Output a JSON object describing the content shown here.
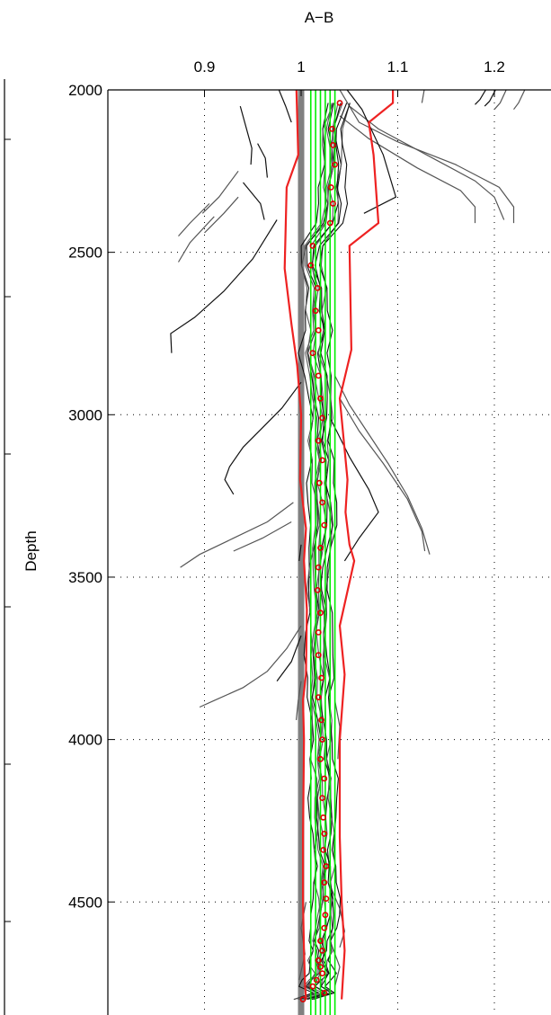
{
  "chart_data": {
    "type": "line",
    "title": "A−B",
    "xlabel": "",
    "ylabel": "Depth",
    "x_axis_position": "top",
    "y_axis_reversed": true,
    "xlim": [
      0.8,
      1.27
    ],
    "ylim": [
      1980,
      4800
    ],
    "x_ticks": [
      0.9,
      1.0,
      1.1,
      1.2
    ],
    "x_tick_labels": [
      "0.9",
      "1",
      "1.1",
      "1.2"
    ],
    "y_ticks": [
      2000,
      2500,
      3000,
      3500,
      4000,
      4500
    ],
    "y_tick_labels": [
      "2000",
      "2500",
      "3000",
      "3500",
      "4000",
      "4500"
    ],
    "grid": true,
    "colors": {
      "reference": "#808080",
      "envelope": "#ee2222",
      "markers": "#dd0000",
      "green": "#00ee00",
      "profile_dark": "#111111",
      "profile_gray": "#555555"
    },
    "reference_line": {
      "x": 1.0
    },
    "envelope_left": {
      "x": [
        0.995,
        0.997,
        0.985,
        0.983,
        0.99,
        0.996,
        1.0,
        0.999,
        1.005,
        1.003,
        1.006,
        1.005,
        1.002,
        1.003,
        1.002,
        1.002,
        1.003,
        1.004,
        1.005
      ],
      "y": [
        1980,
        2200,
        2300,
        2550,
        2720,
        2850,
        3000,
        3200,
        3350,
        3450,
        3600,
        3800,
        3880,
        4000,
        4300,
        4500,
        4650,
        4750,
        4800
      ]
    },
    "envelope_right": {
      "x": [
        1.095,
        1.095,
        1.07,
        1.075,
        1.08,
        1.05,
        1.052,
        1.04,
        1.048,
        1.046,
        1.05,
        1.055,
        1.04,
        1.045,
        1.04,
        1.04,
        1.042,
        1.045,
        1.042
      ],
      "y": [
        1980,
        2040,
        2100,
        2200,
        2410,
        2480,
        2800,
        2950,
        3200,
        3300,
        3400,
        3450,
        3650,
        3800,
        4000,
        4300,
        4500,
        4650,
        4800
      ]
    },
    "green_lines": [
      1.01,
      1.015,
      1.02,
      1.025,
      1.03,
      1.035
    ],
    "markers": {
      "depth": [
        2040,
        2120,
        2170,
        2230,
        2300,
        2350,
        2410,
        2480,
        2540,
        2610,
        2680,
        2740,
        2810,
        2880,
        2950,
        3010,
        3080,
        3140,
        3210,
        3270,
        3340,
        3410,
        3470,
        3540,
        3610,
        3670,
        3740,
        3810,
        3870,
        3940,
        4000,
        4060,
        4120,
        4180,
        4240,
        4290,
        4340,
        4390,
        4440,
        4490,
        4540,
        4580,
        4620,
        4650,
        4680,
        4700,
        4720,
        4740,
        4760,
        4780,
        4800
      ],
      "value": [
        1.04,
        1.032,
        1.033,
        1.035,
        1.031,
        1.033,
        1.03,
        1.012,
        1.01,
        1.017,
        1.015,
        1.018,
        1.012,
        1.018,
        1.02,
        1.022,
        1.018,
        1.022,
        1.019,
        1.022,
        1.024,
        1.02,
        1.018,
        1.017,
        1.02,
        1.018,
        1.018,
        1.021,
        1.018,
        1.021,
        1.022,
        1.02,
        1.024,
        1.022,
        1.023,
        1.024,
        1.023,
        1.026,
        1.024,
        1.026,
        1.025,
        1.024,
        1.02,
        1.022,
        1.018,
        1.02,
        1.022,
        1.016,
        1.012,
        1.024,
        1.002
      ]
    },
    "profiles": [
      {
        "color": "dark",
        "points": [
          [
            0.937,
            2050
          ],
          [
            0.949,
            2180
          ],
          [
            0.948,
            2230
          ]
        ]
      },
      {
        "color": "dark",
        "points": [
          [
            0.975,
            1985
          ],
          [
            0.984,
            2050
          ],
          [
            0.99,
            2100
          ]
        ]
      },
      {
        "color": "dark",
        "points": [
          [
            0.955,
            2165
          ],
          [
            0.963,
            2210
          ],
          [
            0.965,
            2270
          ]
        ]
      },
      {
        "color": "dark",
        "points": [
          [
            0.94,
            2285
          ],
          [
            0.958,
            2350
          ],
          [
            0.962,
            2400
          ]
        ]
      },
      {
        "color": "gray",
        "points": [
          [
            0.935,
            2250
          ],
          [
            0.915,
            2330
          ],
          [
            0.898,
            2380
          ]
        ]
      },
      {
        "color": "gray",
        "points": [
          [
            0.935,
            2330
          ],
          [
            0.92,
            2380
          ],
          [
            0.9,
            2440
          ]
        ]
      },
      {
        "color": "gray",
        "points": [
          [
            0.905,
            2350
          ],
          [
            0.885,
            2410
          ],
          [
            0.873,
            2450
          ]
        ]
      },
      {
        "color": "gray",
        "points": [
          [
            0.91,
            2390
          ],
          [
            0.885,
            2470
          ],
          [
            0.873,
            2530
          ]
        ]
      },
      {
        "color": "dark",
        "points": [
          [
            0.975,
            2400
          ],
          [
            0.95,
            2520
          ],
          [
            0.92,
            2620
          ],
          [
            0.89,
            2700
          ],
          [
            0.865,
            2750
          ],
          [
            0.866,
            2810
          ]
        ]
      },
      {
        "color": "gray",
        "points": [
          [
            1.04,
            2000
          ],
          [
            1.06,
            2100
          ],
          [
            1.1,
            2160
          ],
          [
            1.16,
            2230
          ],
          [
            1.205,
            2300
          ],
          [
            1.22,
            2360
          ],
          [
            1.22,
            2410
          ]
        ]
      },
      {
        "color": "gray",
        "points": [
          [
            1.05,
            2050
          ],
          [
            1.08,
            2120
          ],
          [
            1.13,
            2200
          ],
          [
            1.18,
            2280
          ],
          [
            1.2,
            2330
          ],
          [
            1.21,
            2400
          ]
        ]
      },
      {
        "color": "gray",
        "points": [
          [
            1.04,
            2080
          ],
          [
            1.07,
            2150
          ],
          [
            1.12,
            2240
          ],
          [
            1.165,
            2310
          ],
          [
            1.18,
            2360
          ],
          [
            1.18,
            2410
          ]
        ]
      },
      {
        "color": "dark",
        "points": [
          [
            1.045,
            1990
          ],
          [
            1.063,
            2060
          ],
          [
            1.085,
            2200
          ],
          [
            1.098,
            2330
          ],
          [
            1.065,
            2380
          ]
        ]
      },
      {
        "color": "gray",
        "points": [
          [
            1.128,
            1990
          ],
          [
            1.125,
            2040
          ]
        ]
      },
      {
        "color": "dark",
        "points": [
          [
            1.193,
            1990
          ],
          [
            1.185,
            2030
          ],
          [
            1.18,
            2045
          ]
        ]
      },
      {
        "color": "dark",
        "points": [
          [
            1.203,
            1990
          ],
          [
            1.195,
            2035
          ],
          [
            1.19,
            2050
          ]
        ]
      },
      {
        "color": "gray",
        "points": [
          [
            1.213,
            1995
          ],
          [
            1.206,
            2040
          ],
          [
            1.2,
            2060
          ]
        ]
      },
      {
        "color": "gray",
        "points": [
          [
            1.233,
            1990
          ],
          [
            1.225,
            2040
          ],
          [
            1.22,
            2060
          ]
        ]
      },
      {
        "color": "dark",
        "points": [
          [
            1.0,
            2900
          ],
          [
            0.98,
            2980
          ],
          [
            0.96,
            3040
          ],
          [
            0.94,
            3100
          ],
          [
            0.926,
            3160
          ],
          [
            0.921,
            3200
          ],
          [
            0.93,
            3245
          ]
        ]
      },
      {
        "color": "gray",
        "points": [
          [
            0.992,
            3270
          ],
          [
            0.965,
            3330
          ],
          [
            0.93,
            3380
          ],
          [
            0.895,
            3430
          ],
          [
            0.875,
            3470
          ]
        ]
      },
      {
        "color": "gray",
        "points": [
          [
            0.99,
            3330
          ],
          [
            0.96,
            3380
          ],
          [
            0.93,
            3420
          ]
        ]
      },
      {
        "color": "dark",
        "points": [
          [
            1.0,
            3400
          ],
          [
            0.998,
            3450
          ]
        ]
      },
      {
        "color": "gray",
        "points": [
          [
            1.035,
            2880
          ],
          [
            1.05,
            2970
          ],
          [
            1.07,
            3060
          ],
          [
            1.09,
            3150
          ],
          [
            1.11,
            3250
          ],
          [
            1.125,
            3350
          ],
          [
            1.133,
            3430
          ]
        ]
      },
      {
        "color": "gray",
        "points": [
          [
            1.04,
            2950
          ],
          [
            1.06,
            3050
          ],
          [
            1.085,
            3150
          ],
          [
            1.11,
            3260
          ],
          [
            1.125,
            3360
          ],
          [
            1.128,
            3420
          ]
        ]
      },
      {
        "color": "dark",
        "points": [
          [
            1.03,
            3010
          ],
          [
            1.05,
            3130
          ],
          [
            1.07,
            3230
          ],
          [
            1.08,
            3300
          ],
          [
            1.06,
            3380
          ],
          [
            1.045,
            3450
          ]
        ]
      },
      {
        "color": "gray",
        "points": [
          [
            1.0,
            3650
          ],
          [
            0.985,
            3720
          ],
          [
            0.965,
            3790
          ],
          [
            0.94,
            3840
          ],
          [
            0.91,
            3880
          ],
          [
            0.895,
            3900
          ]
        ]
      },
      {
        "color": "dark",
        "points": [
          [
            1.0,
            3680
          ],
          [
            0.99,
            3760
          ],
          [
            0.975,
            3820
          ]
        ]
      },
      {
        "color": "gray",
        "points": [
          [
            1.0,
            3820
          ],
          [
            0.997,
            3880
          ],
          [
            0.995,
            3940
          ]
        ]
      },
      {
        "color": "gray",
        "points": [
          [
            1.035,
            3880
          ],
          [
            1.04,
            3960
          ],
          [
            1.038,
            4060
          ]
        ]
      },
      {
        "color": "gray",
        "points": [
          [
            1.03,
            4450
          ],
          [
            1.04,
            4520
          ],
          [
            1.045,
            4590
          ],
          [
            1.04,
            4640
          ]
        ]
      },
      {
        "color": "gray",
        "points": [
          [
            1.005,
            4500
          ],
          [
            1.0,
            4580
          ],
          [
            1.004,
            4660
          ],
          [
            0.998,
            4740
          ]
        ]
      },
      {
        "color": "gray",
        "points": [
          [
            1.03,
            4620
          ],
          [
            1.04,
            4700
          ],
          [
            1.035,
            4760
          ]
        ]
      }
    ]
  }
}
